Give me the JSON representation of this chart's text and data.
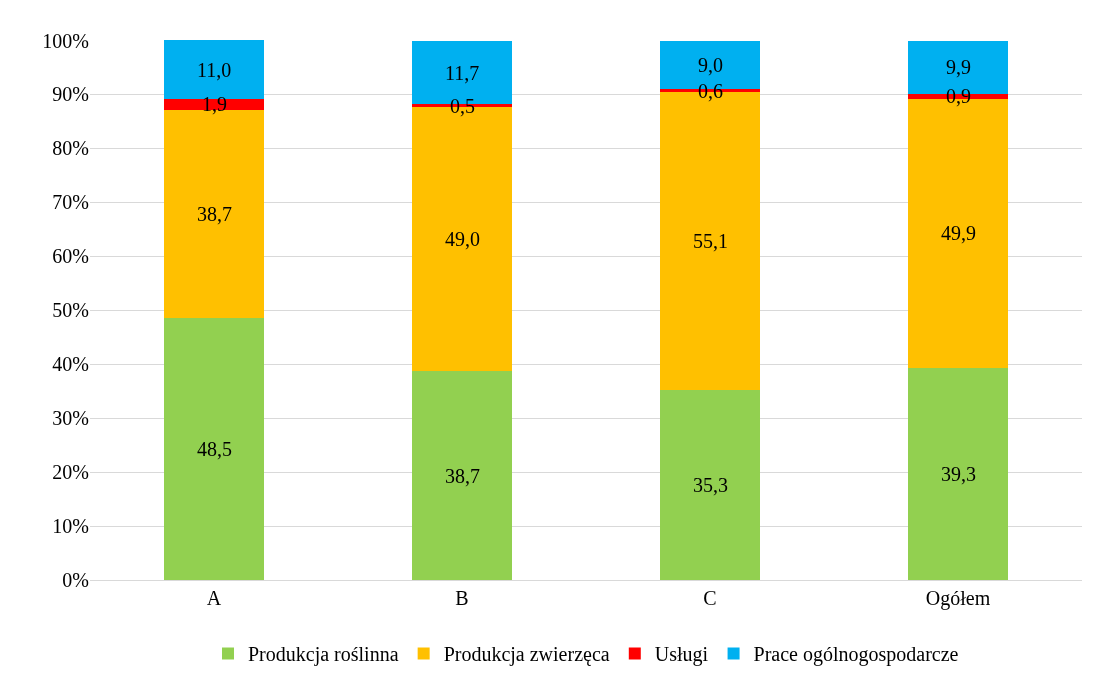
{
  "chart_data": {
    "type": "bar",
    "stacked": true,
    "categories": [
      "A",
      "B",
      "C",
      "Ogółem"
    ],
    "series": [
      {
        "name": "Produkcja roślinna",
        "color": "#92d050",
        "values": [
          48.5,
          38.7,
          35.3,
          39.3
        ],
        "value_labels": [
          "48,5",
          "38,7",
          "35,3",
          "39,3"
        ]
      },
      {
        "name": "Produkcja zwierzęca",
        "color": "#ffc000",
        "values": [
          38.7,
          49.0,
          55.1,
          49.9
        ],
        "value_labels": [
          "38,7",
          "49,0",
          "55,1",
          "49,9"
        ]
      },
      {
        "name": "Usługi",
        "color": "#ff0000",
        "values": [
          1.9,
          0.5,
          0.6,
          0.9
        ],
        "value_labels": [
          "1,9",
          "0,5",
          "0,6",
          "0,9"
        ]
      },
      {
        "name": "Prace ogólnogospodarcze",
        "color": "#00b0f0",
        "values": [
          11.0,
          11.7,
          9.0,
          9.9
        ],
        "value_labels": [
          "11,0",
          "11,7",
          "9,0",
          "9,9"
        ]
      }
    ],
    "ylim": [
      0,
      100.1
    ],
    "yticks": [
      {
        "value": 0,
        "label": "0%"
      },
      {
        "value": 10,
        "label": "10%"
      },
      {
        "value": 20,
        "label": "20%"
      },
      {
        "value": 30,
        "label": "30%"
      },
      {
        "value": 40,
        "label": "40%"
      },
      {
        "value": 50,
        "label": "50%"
      },
      {
        "value": 60,
        "label": "60%"
      },
      {
        "value": 70,
        "label": "70%"
      },
      {
        "value": 80,
        "label": "80%"
      },
      {
        "value": 90,
        "label": "90%"
      },
      {
        "value": 100,
        "label": "100%"
      }
    ],
    "grid": "y",
    "legend": "bottom"
  }
}
